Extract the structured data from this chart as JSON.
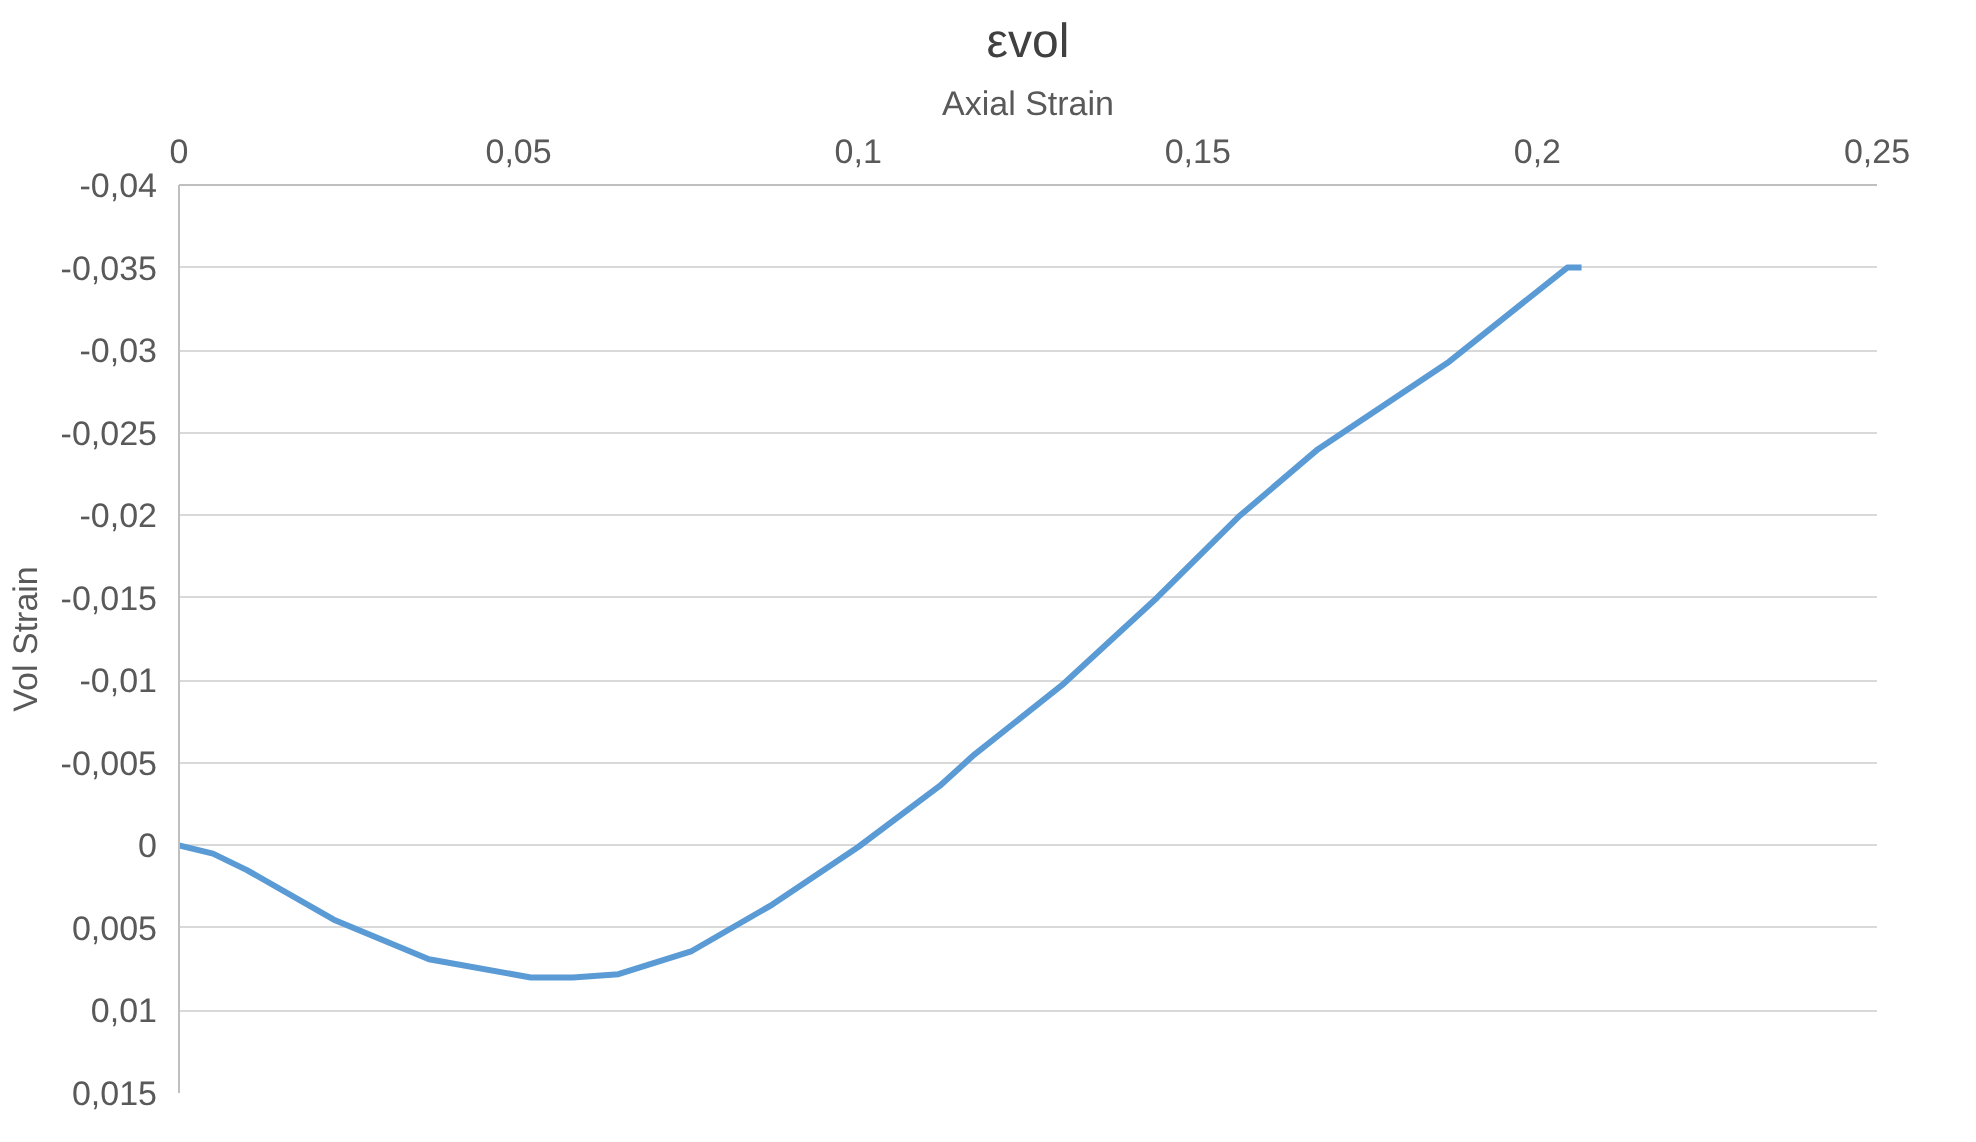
{
  "chart_data": {
    "type": "line",
    "title": "εvol",
    "xlabel": "Axial Strain",
    "ylabel": "Vol Strain",
    "x": [
      0,
      0.005,
      0.01,
      0.0228,
      0.0368,
      0.0518,
      0.058,
      0.0647,
      0.0755,
      0.0873,
      0.1,
      0.112,
      0.1171,
      0.13,
      0.144,
      0.156,
      0.1677,
      0.187,
      0.2044,
      0.2065
    ],
    "series": [
      {
        "color": "#5b9bd5",
        "values": [
          0,
          0.0005,
          0.0015,
          0.0045,
          0.0069,
          0.008,
          0.008,
          0.0078,
          0.0064,
          0.0036,
          0.0001,
          -0.0036,
          -0.0055,
          -0.0097,
          -0.015,
          -0.0199,
          -0.024,
          -0.0293,
          -0.035,
          -0.035
        ]
      }
    ],
    "xlim": [
      0,
      0.25
    ],
    "xticks": [
      0,
      {
        "value": 0.05,
        "label": "0,05"
      },
      {
        "value": 0.1,
        "label": "0,1"
      },
      {
        "value": 0.15,
        "label": "0,15"
      },
      {
        "value": 0.2,
        "label": "0,2"
      },
      {
        "value": 0.25,
        "label": "0,25"
      }
    ],
    "ylim": [
      0.015,
      -0.04
    ],
    "yticks": [
      {
        "value": -0.04,
        "label": "-0,04"
      },
      {
        "value": -0.035,
        "label": "-0,035"
      },
      {
        "value": -0.03,
        "label": "-0,03"
      },
      {
        "value": -0.025,
        "label": "-0,025"
      },
      {
        "value": -0.02,
        "label": "-0,02"
      },
      {
        "value": -0.015,
        "label": "-0,015"
      },
      {
        "value": -0.01,
        "label": "-0,01"
      },
      {
        "value": -0.005,
        "label": "-0,005"
      },
      0,
      {
        "value": 0.005,
        "label": "0,005"
      },
      {
        "value": 0.01,
        "label": "0,01"
      },
      {
        "value": 0.015,
        "label": "0,015"
      }
    ],
    "grid": "y",
    "marker": "none",
    "line_style": "solid"
  }
}
